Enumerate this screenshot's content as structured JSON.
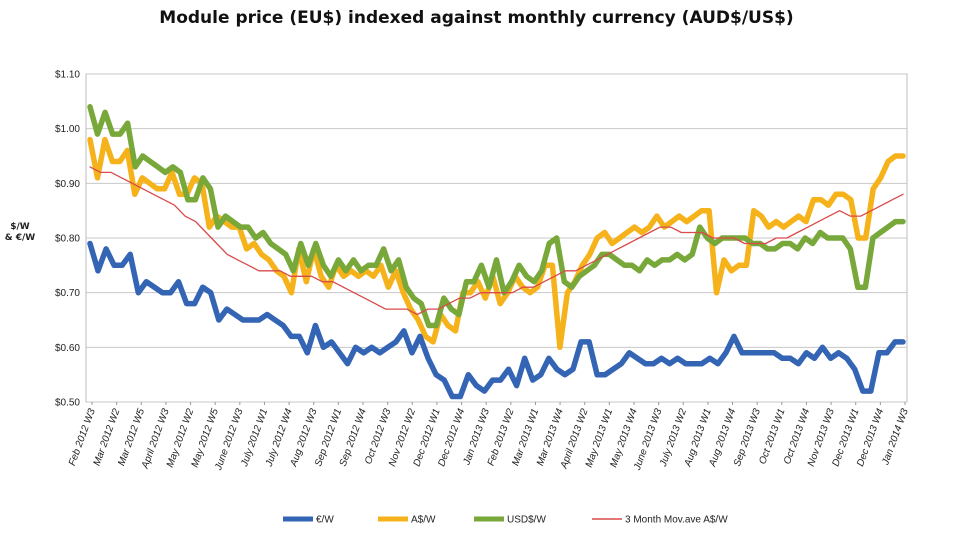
{
  "chart_data": {
    "type": "line",
    "title": "Module price (EU$) indexed against monthly currency (AUD$/US$)",
    "ylabel": "$/W\n& €/W",
    "xlabel": "",
    "ylim": [
      0.5,
      1.1
    ],
    "yticks": [
      "$0.50",
      "$0.60",
      "$0.70",
      "$0.80",
      "$0.90",
      "$1.00",
      "$1.10"
    ],
    "grid": "horizontal",
    "legend_position": "bottom",
    "x_labels": [
      "Feb 2012 W3",
      "Mar 2012 W2",
      "Mar 2012 W5",
      "April 2012 W3",
      "May 2012 W2",
      "May 2012 W5",
      "June 2012 W3",
      "July 2012 W1",
      "July 2012 W4",
      "Aug 2012 W3",
      "Sep 2012 W1",
      "Sep 2012 W4",
      "Oct 2012 W3",
      "Nov 2012 W2",
      "Dec 2012 W1",
      "Dec 2012 W4",
      "Jan 2013 W3",
      "Feb 2013 W2",
      "Mar 2013 W1",
      "Mar 2013 W4",
      "April 2013 W2",
      "May 2013 W1",
      "May 2013 W4",
      "June 2013 W3",
      "July 2013 W2",
      "Aug 2013 W1",
      "Aug 2013 W4",
      "Sep 2013 W3",
      "Oct 2013 W1",
      "Oct 2013 W4",
      "Nov 2013 W3",
      "Dec 2013 W1",
      "Dec 2013 W4",
      "Jan 2014 W3"
    ],
    "series": [
      {
        "name": "€/W",
        "color": "#3464b4",
        "values": [
          0.79,
          0.74,
          0.78,
          0.75,
          0.75,
          0.77,
          0.7,
          0.72,
          0.71,
          0.7,
          0.7,
          0.72,
          0.68,
          0.68,
          0.71,
          0.7,
          0.65,
          0.67,
          0.66,
          0.65,
          0.65,
          0.65,
          0.66,
          0.65,
          0.64,
          0.62,
          0.62,
          0.59,
          0.64,
          0.6,
          0.61,
          0.59,
          0.57,
          0.6,
          0.59,
          0.6,
          0.59,
          0.6,
          0.61,
          0.63,
          0.59,
          0.62,
          0.58,
          0.55,
          0.54,
          0.51,
          0.51,
          0.55,
          0.53,
          0.52,
          0.54,
          0.54,
          0.56,
          0.53,
          0.58,
          0.54,
          0.55,
          0.58,
          0.56,
          0.55,
          0.56,
          0.61,
          0.61,
          0.55,
          0.55,
          0.56,
          0.57,
          0.59,
          0.58,
          0.57,
          0.57,
          0.58,
          0.57,
          0.58,
          0.57,
          0.57,
          0.57,
          0.58,
          0.57,
          0.59,
          0.62,
          0.59,
          0.59,
          0.59,
          0.59,
          0.59,
          0.58,
          0.58,
          0.57,
          0.59,
          0.58,
          0.6,
          0.58,
          0.59,
          0.58,
          0.56,
          0.52,
          0.52,
          0.59,
          0.59,
          0.61,
          0.61
        ]
      },
      {
        "name": "A$/W",
        "color": "#f5b21a",
        "values": [
          0.98,
          0.91,
          0.98,
          0.94,
          0.94,
          0.96,
          0.88,
          0.91,
          0.9,
          0.89,
          0.89,
          0.92,
          0.88,
          0.88,
          0.91,
          0.9,
          0.82,
          0.84,
          0.83,
          0.82,
          0.82,
          0.78,
          0.79,
          0.77,
          0.76,
          0.74,
          0.73,
          0.7,
          0.78,
          0.72,
          0.78,
          0.73,
          0.71,
          0.75,
          0.73,
          0.74,
          0.73,
          0.74,
          0.73,
          0.75,
          0.71,
          0.74,
          0.7,
          0.67,
          0.65,
          0.62,
          0.61,
          0.66,
          0.64,
          0.63,
          0.7,
          0.7,
          0.72,
          0.69,
          0.73,
          0.68,
          0.7,
          0.73,
          0.71,
          0.7,
          0.71,
          0.75,
          0.75,
          0.6,
          0.7,
          0.72,
          0.75,
          0.77,
          0.8,
          0.81,
          0.79,
          0.8,
          0.81,
          0.82,
          0.81,
          0.82,
          0.84,
          0.82,
          0.83,
          0.84,
          0.83,
          0.84,
          0.85,
          0.85,
          0.7,
          0.76,
          0.74,
          0.75,
          0.75,
          0.85,
          0.84,
          0.82,
          0.83,
          0.82,
          0.83,
          0.84,
          0.83,
          0.87,
          0.87,
          0.86,
          0.88,
          0.88,
          0.87,
          0.8,
          0.8,
          0.89,
          0.91,
          0.94,
          0.95,
          0.95
        ]
      },
      {
        "name": "USD$/W",
        "color": "#78a83a",
        "values": [
          1.04,
          0.99,
          1.03,
          0.99,
          0.99,
          1.01,
          0.93,
          0.95,
          0.94,
          0.93,
          0.92,
          0.93,
          0.92,
          0.87,
          0.87,
          0.91,
          0.89,
          0.82,
          0.84,
          0.83,
          0.82,
          0.82,
          0.8,
          0.81,
          0.79,
          0.78,
          0.77,
          0.74,
          0.79,
          0.75,
          0.79,
          0.75,
          0.73,
          0.76,
          0.74,
          0.76,
          0.74,
          0.75,
          0.75,
          0.78,
          0.74,
          0.76,
          0.71,
          0.69,
          0.68,
          0.64,
          0.64,
          0.69,
          0.67,
          0.66,
          0.72,
          0.72,
          0.75,
          0.71,
          0.76,
          0.7,
          0.72,
          0.75,
          0.73,
          0.72,
          0.74,
          0.79,
          0.8,
          0.72,
          0.71,
          0.73,
          0.74,
          0.75,
          0.77,
          0.77,
          0.76,
          0.75,
          0.75,
          0.74,
          0.76,
          0.75,
          0.76,
          0.76,
          0.77,
          0.76,
          0.77,
          0.82,
          0.8,
          0.79,
          0.8,
          0.8,
          0.8,
          0.8,
          0.79,
          0.79,
          0.78,
          0.78,
          0.79,
          0.79,
          0.78,
          0.8,
          0.79,
          0.81,
          0.8,
          0.8,
          0.8,
          0.78,
          0.71,
          0.71,
          0.8,
          0.81,
          0.82,
          0.83,
          0.83
        ]
      },
      {
        "name": "3 Month Mov.ave A$/W",
        "color": "#d94a4a",
        "values": [
          0.93,
          0.92,
          0.92,
          0.91,
          0.9,
          0.89,
          0.88,
          0.87,
          0.86,
          0.84,
          0.83,
          0.81,
          0.79,
          0.77,
          0.76,
          0.75,
          0.74,
          0.74,
          0.74,
          0.73,
          0.73,
          0.73,
          0.72,
          0.72,
          0.71,
          0.7,
          0.69,
          0.68,
          0.67,
          0.67,
          0.67,
          0.66,
          0.67,
          0.67,
          0.68,
          0.69,
          0.69,
          0.7,
          0.7,
          0.7,
          0.7,
          0.71,
          0.71,
          0.72,
          0.73,
          0.74,
          0.74,
          0.75,
          0.76,
          0.77,
          0.78,
          0.79,
          0.8,
          0.81,
          0.82,
          0.82,
          0.81,
          0.81,
          0.81,
          0.8,
          0.8,
          0.8,
          0.79,
          0.79,
          0.79,
          0.8,
          0.8,
          0.81,
          0.82,
          0.83,
          0.84,
          0.85,
          0.84,
          0.84,
          0.85,
          0.86,
          0.87,
          0.88
        ]
      }
    ]
  }
}
